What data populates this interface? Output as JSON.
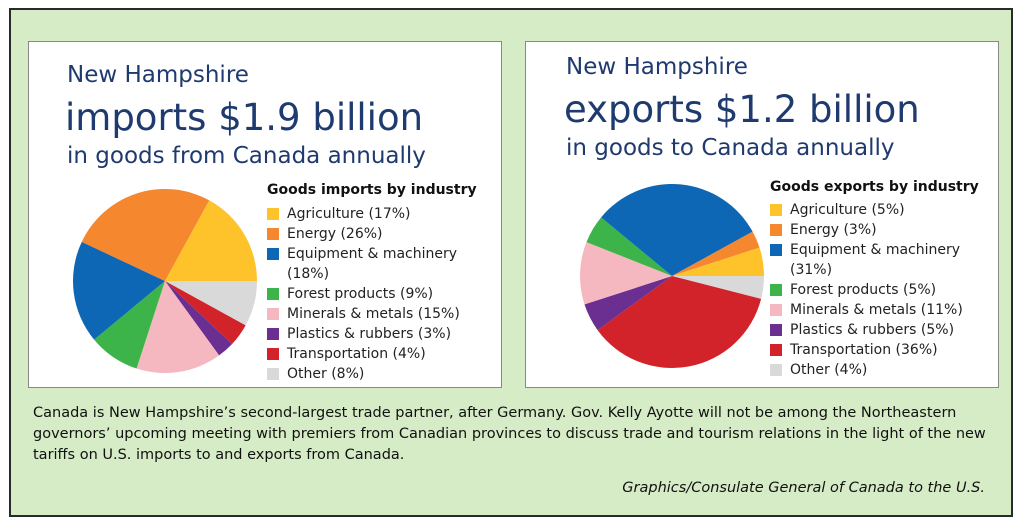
{
  "colors": {
    "Agriculture": "#fec22b",
    "Energy": "#f5872f",
    "Equipment & machinery": "#0d67b5",
    "Forest products": "#3cb449",
    "Minerals & metals": "#f6b8c0",
    "Plastics & rubbers": "#6a2f91",
    "Transportation": "#d2232a",
    "Other": "#d9d9d9"
  },
  "imports": {
    "state": "New Hampshire",
    "headline": "imports $1.9 billion",
    "subline": "in goods from Canada annually",
    "legend_title": "Goods imports by industry",
    "legend": [
      "Agriculture (17%)",
      "Energy (26%)",
      "Equipment & machinery (18%)",
      "Forest products (9%)",
      "Minerals & metals (15%)",
      "Plastics & rubbers (3%)",
      "Transportation (4%)",
      "Other (8%)"
    ]
  },
  "exports": {
    "state": "New Hampshire",
    "headline": "exports $1.2 billion",
    "subline": "in goods to Canada annually",
    "legend_title": "Goods exports by industry",
    "legend": [
      "Agriculture (5%)",
      "Energy (3%)",
      "Equipment & machinery (31%)",
      "Forest products (5%)",
      "Minerals & metals (11%)",
      "Plastics & rubbers (5%)",
      "Transportation (36%)",
      "Other (4%)"
    ]
  },
  "caption": "Canada is New Hampshire’s second-largest trade partner, after Germany. Gov. Kelly Ayotte will not be among the Northeastern governors’ upcoming meeting with premiers from Canadian provinces to discuss trade and tourism relations in the light of the new tariffs on U.S. imports to and exports from Canada.",
  "credit": "Graphics/Consulate General of Canada to the U.S.",
  "chart_data": [
    {
      "type": "pie",
      "title": "Goods imports by industry",
      "categories": [
        "Agriculture",
        "Energy",
        "Equipment & machinery",
        "Forest products",
        "Minerals & metals",
        "Plastics & rubbers",
        "Transportation",
        "Other"
      ],
      "values": [
        17,
        26,
        18,
        9,
        15,
        3,
        4,
        8
      ],
      "legend_position": "right"
    },
    {
      "type": "pie",
      "title": "Goods exports by industry",
      "categories": [
        "Agriculture",
        "Energy",
        "Equipment & machinery",
        "Forest products",
        "Minerals & metals",
        "Plastics & rubbers",
        "Transportation",
        "Other"
      ],
      "values": [
        5,
        3,
        31,
        5,
        11,
        5,
        36,
        4
      ],
      "legend_position": "right"
    }
  ]
}
